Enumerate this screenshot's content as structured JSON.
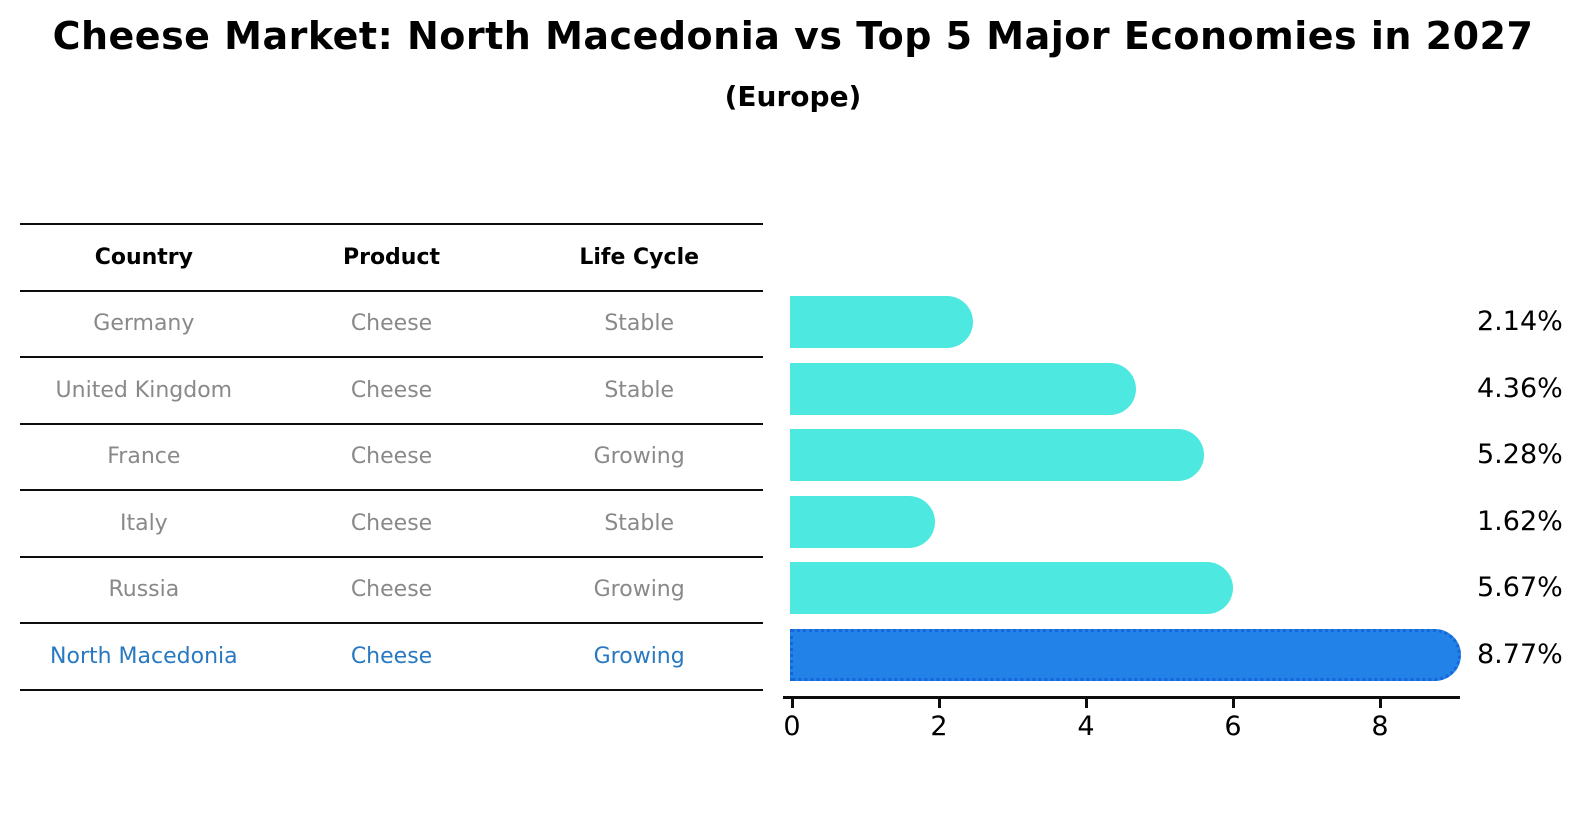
{
  "header": {
    "title": "Cheese Market: North Macedonia vs Top 5 Major Economies in 2027",
    "subtitle": "(Europe)"
  },
  "table": {
    "headers": [
      "Country",
      "Product",
      "Life Cycle"
    ],
    "rows": [
      {
        "country": "Germany",
        "product": "Cheese",
        "life_cycle": "Stable"
      },
      {
        "country": "United Kingdom",
        "product": "Cheese",
        "life_cycle": "Stable"
      },
      {
        "country": "France",
        "product": "Cheese",
        "life_cycle": "Growing"
      },
      {
        "country": "Italy",
        "product": "Cheese",
        "life_cycle": "Stable"
      },
      {
        "country": "Russia",
        "product": "Cheese",
        "life_cycle": "Growing"
      },
      {
        "country": "North Macedonia",
        "product": "Cheese",
        "life_cycle": "Growing"
      }
    ],
    "highlight_row_index": 5
  },
  "chart_data": {
    "type": "bar",
    "orientation": "horizontal",
    "title": "Cheese Market: North Macedonia vs Top 5 Major Economies in 2027",
    "subtitle": "(Europe)",
    "categories": [
      "Germany",
      "United Kingdom",
      "France",
      "Italy",
      "Russia",
      "North Macedonia"
    ],
    "values": [
      2.14,
      4.36,
      5.28,
      1.62,
      5.67,
      8.77
    ],
    "value_labels": [
      "2.14%",
      "4.36%",
      "5.28%",
      "1.62%",
      "5.67%",
      "8.77%"
    ],
    "xlim": [
      0,
      9.2
    ],
    "x_ticks": [
      0,
      2,
      4,
      6,
      8
    ],
    "x_tick_labels": [
      "0",
      "2",
      "4",
      "6",
      "8"
    ],
    "grid": false,
    "legend": false,
    "highlight_index": 5
  },
  "colors": {
    "ink": "#000000",
    "gray": "#898989",
    "hblue": "#2979c0",
    "cyan": "#4de9e0",
    "blue": "#2282e8",
    "blue-dot": "#1566d8",
    "line": "#0d0d0d"
  }
}
